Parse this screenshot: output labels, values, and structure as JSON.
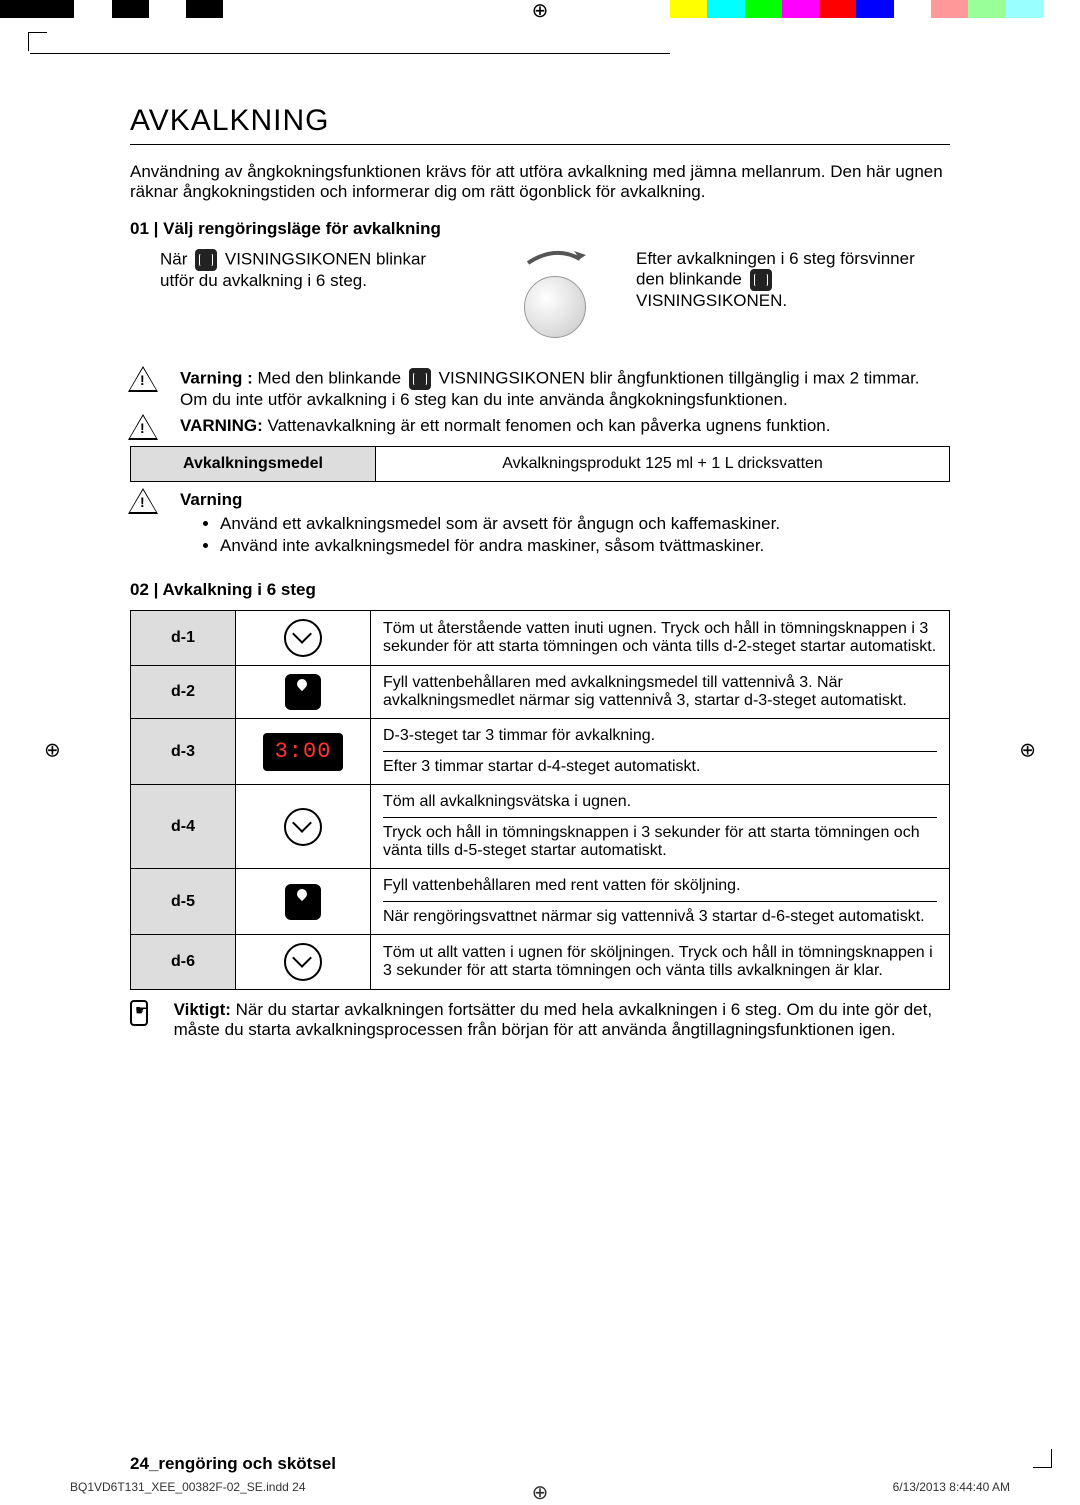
{
  "colorbar": [
    "#000",
    "#000",
    "#fff",
    "#000",
    "#fff",
    "#000",
    "#fff",
    "#fff",
    "#fff",
    "#fff",
    "#fff",
    "#fff",
    "#fff",
    "#fff",
    "#fff",
    "#fff",
    "#fff",
    "#fff",
    "#ff0",
    "#0ff",
    "#0f0",
    "#f0f",
    "#f00",
    "#00f",
    "#fff",
    "#f99",
    "#9f9",
    "#9ff",
    "#fff"
  ],
  "h1": "AVKALKNING",
  "intro": "Användning av ångkokningsfunktionen krävs för att utföra avkalkning med jämna mellanrum. Den här ugnen räknar ångkokningstiden och informerar dig om rätt ögonblick för avkalkning.",
  "step1": {
    "title": "01 | Välj rengöringsläge för avkalkning",
    "left1": "När",
    "left2": "VISNINGSIKONEN blinkar",
    "left3": "utför du avkalkning i 6 steg.",
    "right1": "Efter avkalkningen i 6 steg försvinner",
    "right2": "den blinkande",
    "right3": "VISNINGSIKONEN."
  },
  "w1a": "Varning :",
  "w1b": "Med den blinkande",
  "w1c": "VISNINGSIKONEN blir ångfunktionen tillgänglig i max 2 timmar. Om du inte utför avkalkning i 6 steg kan du inte använda ångkokningsfunktionen.",
  "w2a": "VARNING:",
  "w2b": "Vattenavkalkning är ett normalt fenomen och kan påverka ugnens funktion.",
  "tbl1": {
    "h": "Avkalkningsmedel",
    "v": "Avkalkningsprodukt 125 ml + 1 L dricksvatten"
  },
  "w3": "Varning",
  "w3li": [
    "Använd ett avkalkningsmedel som är avsett för ångugn och kaffemaskiner.",
    "Använd inte avkalkningsmedel för andra maskiner, såsom tvättmaskiner."
  ],
  "step2": "02 | Avkalkning i 6 steg",
  "rows": [
    {
      "k": "d-1",
      "icon": "drain",
      "t": "Töm ut återstående vatten inuti ugnen. Tryck och håll in tömningsknappen i 3 sekunder för att starta tömningen och vänta tills d-2-steget startar automatiskt."
    },
    {
      "k": "d-2",
      "icon": "tank",
      "t": "Fyll vattenbehållaren med avkalkningsmedel till vattennivå 3. När avkalkningsmedlet närmar sig vattennivå 3, startar d-3-steget automatiskt."
    },
    {
      "k": "d-3",
      "icon": "timer",
      "timer": "3:00",
      "t": "D-3-steget tar 3 timmar för avkalkning.",
      "t2": "Efter 3 timmar startar d-4-steget automatiskt."
    },
    {
      "k": "d-4",
      "icon": "drain",
      "t": "Töm all avkalkningsvätska i ugnen.",
      "t2": "Tryck och håll in tömningsknappen i 3 sekunder för att starta tömningen och vänta tills d-5-steget startar automatiskt."
    },
    {
      "k": "d-5",
      "icon": "tank",
      "t": "Fyll vattenbehållaren med rent vatten för sköljning.",
      "t2": "När rengöringsvattnet närmar sig vattennivå 3 startar d-6-steget automatiskt."
    },
    {
      "k": "d-6",
      "icon": "drain",
      "t": "Töm ut allt vatten i ugnen för sköljningen.\nTryck och håll in tömningsknappen i 3 sekunder för att starta tömningen och vänta tills avkalkningen är klar."
    }
  ],
  "note": {
    "b": "Viktigt:",
    "t": "När du startar avkalkningen fortsätter du med hela avkalkningen i 6 steg. Om du inte gör det, måste du starta avkalkningsprocessen från början för att använda ångtillagningsfunktionen igen."
  },
  "footer": "24_rengöring och skötsel",
  "pfoot": {
    "l": "BQ1VD6T131_XEE_00382F-02_SE.indd   24",
    "r": "6/13/2013   8:44:40 AM"
  }
}
